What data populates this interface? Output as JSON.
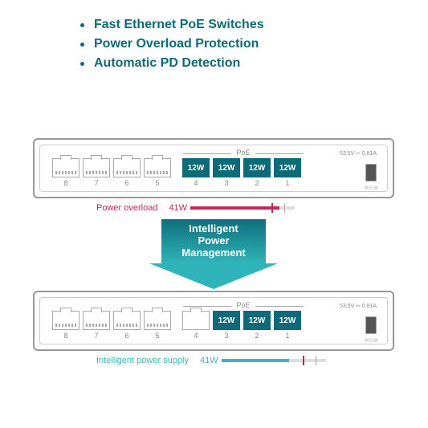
{
  "bullets": {
    "b1": "Fast Ethernet PoE Switches",
    "b2": "Power Overload Protection",
    "b3": "Automatic PD Detection"
  },
  "bullet_color": "#0d6a78",
  "arrow": {
    "text": "Intelligent\nPower\nManagement",
    "gradient_from": "#0f6e7c",
    "gradient_to": "#2fb5b9"
  },
  "switch1": {
    "poe_label": "PoE",
    "spec": "53.5V ⎓ 0.81A",
    "ports": {
      "p8": {
        "num": "8",
        "type": "plain"
      },
      "p7": {
        "num": "7",
        "type": "plain"
      },
      "p6": {
        "num": "6",
        "type": "plain"
      },
      "p5": {
        "num": "5",
        "type": "plain"
      },
      "p4": {
        "num": "4",
        "type": "poe",
        "watt": "12W"
      },
      "p3": {
        "num": "3",
        "type": "poe",
        "watt": "12W"
      },
      "p2": {
        "num": "2",
        "type": "poe",
        "watt": "12W"
      },
      "p1": {
        "num": "1",
        "type": "poe",
        "watt": "12W"
      }
    },
    "bar": {
      "label": "Power overload",
      "value": "41W",
      "fill_pct": 85,
      "tick_pct": 78,
      "color": "#c4265e"
    }
  },
  "switch2": {
    "poe_label": "PoE",
    "spec": "53.5V ⎓ 0.81A",
    "ports": {
      "p8": {
        "num": "8",
        "type": "plain"
      },
      "p7": {
        "num": "7",
        "type": "plain"
      },
      "p6": {
        "num": "6",
        "type": "plain"
      },
      "p5": {
        "num": "5",
        "type": "plain"
      },
      "p4": {
        "num": "4",
        "type": "disabled"
      },
      "p3": {
        "num": "3",
        "type": "poe",
        "watt": "12W"
      },
      "p2": {
        "num": "2",
        "type": "poe",
        "watt": "12W"
      },
      "p1": {
        "num": "1",
        "type": "poe",
        "watt": "12W"
      }
    },
    "bar": {
      "label": "Intelligent power supply",
      "value": "41W",
      "fill_pct": 65,
      "tick_pct": 78,
      "color": "#3cb7bb"
    }
  },
  "colors": {
    "poe_bg": "#0d6a78",
    "border": "#999999",
    "bar_bg": "#dddddd"
  }
}
